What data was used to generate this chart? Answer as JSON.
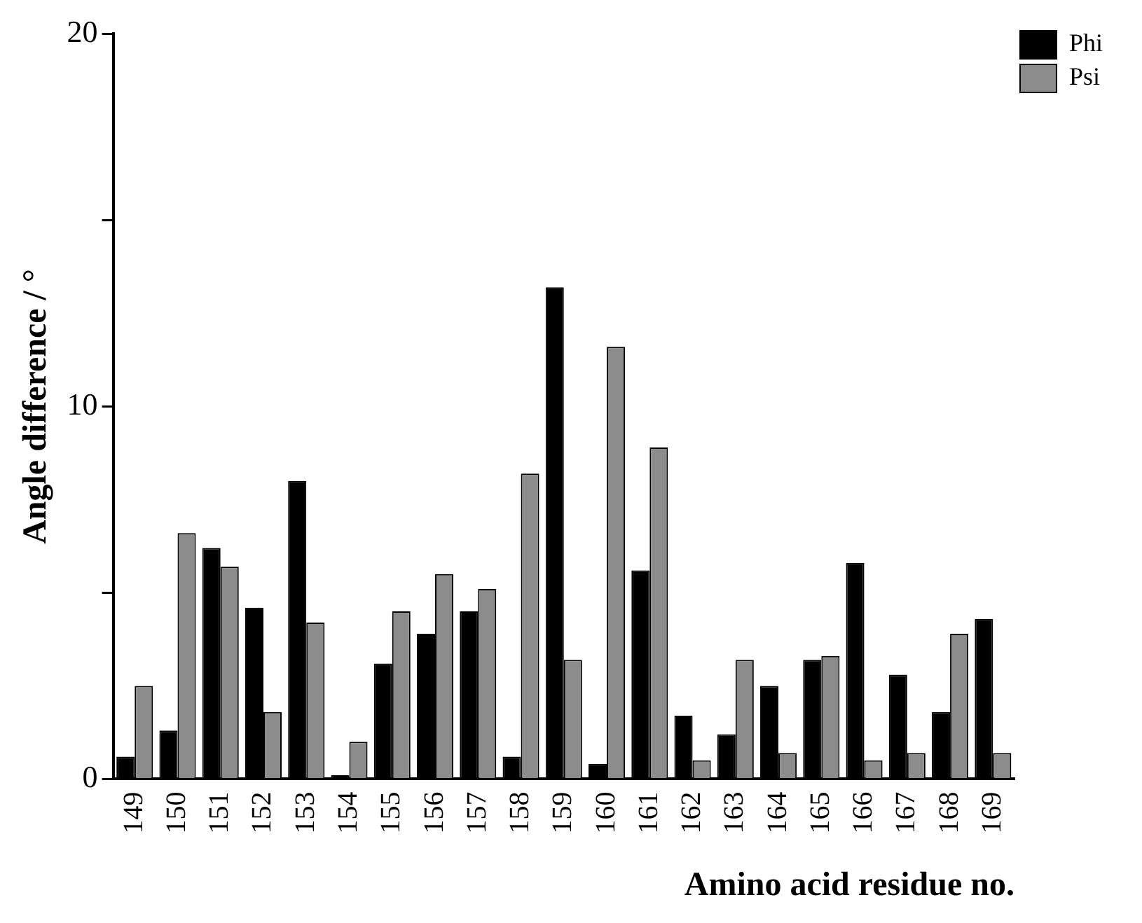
{
  "chart_data": {
    "type": "bar",
    "xlabel": "Amino acid residue no.",
    "ylabel": "Angle difference / °",
    "categories": [
      "149",
      "150",
      "151",
      "152",
      "153",
      "154",
      "155",
      "156",
      "157",
      "158",
      "159",
      "160",
      "161",
      "162",
      "163",
      "164",
      "165",
      "166",
      "167",
      "168",
      "169"
    ],
    "series": [
      {
        "name": "Phi",
        "color": "#000000",
        "values": [
          0.6,
          1.3,
          6.2,
          4.6,
          8.0,
          0.1,
          3.1,
          3.9,
          4.5,
          0.6,
          13.2,
          0.4,
          5.6,
          1.7,
          1.2,
          2.5,
          3.2,
          5.8,
          2.8,
          1.8,
          4.3
        ]
      },
      {
        "name": "Psi",
        "color": "#8c8c8c",
        "values": [
          2.5,
          6.6,
          5.7,
          1.8,
          4.2,
          1.0,
          4.5,
          5.5,
          5.1,
          8.2,
          3.2,
          11.6,
          8.9,
          0.5,
          3.2,
          0.7,
          3.3,
          0.5,
          0.7,
          3.9,
          0.7
        ]
      }
    ],
    "ylim": [
      0,
      20
    ],
    "yticks": [
      0,
      {
        "value": 5,
        "label": null
      },
      10,
      {
        "value": 15,
        "label": null
      },
      20
    ],
    "grid": false,
    "legend": "top right"
  }
}
